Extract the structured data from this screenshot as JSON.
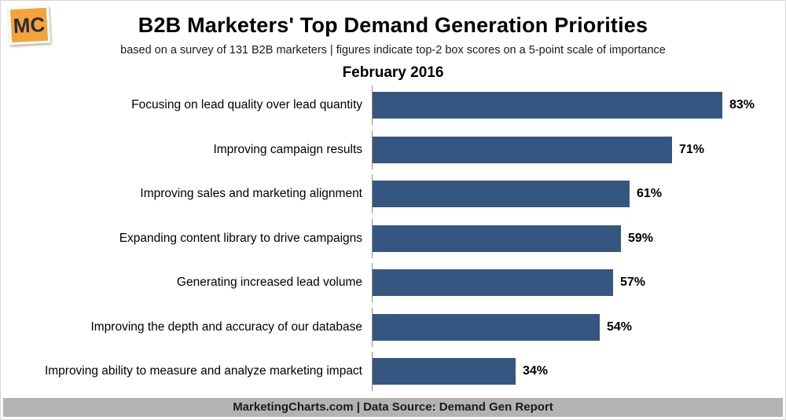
{
  "logo": {
    "text": "MC"
  },
  "header": {
    "title": "B2B Marketers' Top Demand Generation Priorities",
    "subtitle": "based on a survey of 131 B2B marketers | figures indicate top-2 box scores on a 5-point scale of importance",
    "period": "February 2016"
  },
  "chart_data": {
    "type": "bar",
    "orientation": "horizontal",
    "title": "B2B Marketers' Top Demand Generation Priorities",
    "subtitle": "February 2016",
    "categories": [
      "Focusing on lead quality over lead quantity",
      "Improving campaign results",
      "Improving sales and marketing alignment",
      "Expanding content library to drive campaigns",
      "Generating increased lead volume",
      "Improving the depth and accuracy of our database",
      "Improving ability to measure and analyze marketing impact"
    ],
    "values": [
      83,
      71,
      61,
      59,
      57,
      54,
      34
    ],
    "value_suffix": "%",
    "xlim": [
      0,
      94
    ],
    "bar_color": "#345680",
    "grid": false,
    "legend": false
  },
  "footer": {
    "text": "MarketingCharts.com | Data Source: Demand Gen Report"
  }
}
